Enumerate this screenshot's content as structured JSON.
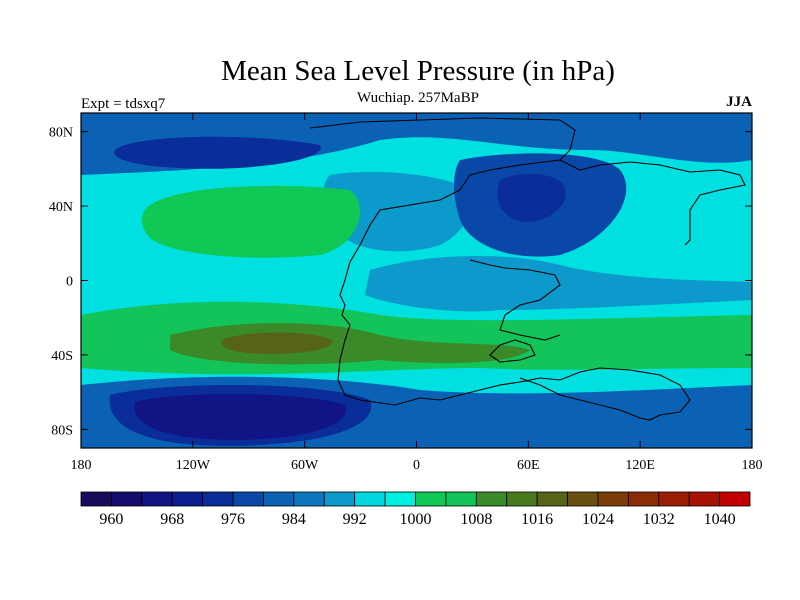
{
  "chart_data": {
    "type": "heatmap",
    "title": "Mean Sea Level Pressure (in hPa)",
    "subtitle": "Wuchiap. 257MaBP",
    "left_label": "Expt = tdsxq7",
    "right_label": "JJA",
    "xlabel": "",
    "ylabel": "",
    "x_range": [
      -180,
      180
    ],
    "y_range": [
      -90,
      90
    ],
    "x_ticks": [
      {
        "value": -180,
        "label": "180"
      },
      {
        "value": -120,
        "label": "120W"
      },
      {
        "value": -60,
        "label": "60W"
      },
      {
        "value": 0,
        "label": "0"
      },
      {
        "value": 60,
        "label": "60E"
      },
      {
        "value": 120,
        "label": "120E"
      },
      {
        "value": 180,
        "label": "180"
      }
    ],
    "y_ticks": [
      {
        "value": 80,
        "label": "80N"
      },
      {
        "value": 40,
        "label": "40N"
      },
      {
        "value": 0,
        "label": "0"
      },
      {
        "value": -40,
        "label": "40S"
      },
      {
        "value": -80,
        "label": "80S"
      }
    ],
    "colorbar": {
      "levels": [
        956,
        960,
        964,
        968,
        972,
        976,
        980,
        984,
        988,
        992,
        996,
        1000,
        1004,
        1008,
        1012,
        1016,
        1020,
        1024,
        1028,
        1032,
        1036,
        1040,
        1044
      ],
      "tick_labels": [
        "960",
        "968",
        "976",
        "984",
        "992",
        "1000",
        "1008",
        "1016",
        "1024",
        "1032",
        "1040"
      ],
      "colors": [
        "#1a0a5a",
        "#150d6e",
        "#101485",
        "#0b1e90",
        "#0a2d99",
        "#0a48a8",
        "#0b62b5",
        "#0c77bf",
        "#0d99cc",
        "#00d8e0",
        "#00f0e0",
        "#10c855",
        "#12c45a",
        "#3a8a2a",
        "#4a7a1e",
        "#556418",
        "#6a5010",
        "#7a3d08",
        "#8a2c06",
        "#9a1e04",
        "#a81202",
        "#c20000"
      ]
    },
    "fields": [
      {
        "value": 1001,
        "color": "#00e0e0",
        "shape": "ocean-background"
      },
      {
        "value": 986,
        "color": "#0b62b5",
        "shape": "northern-low-belt"
      },
      {
        "value": 974,
        "color": "#0a2d99",
        "shape": "arctic-low-core"
      },
      {
        "value": 994,
        "color": "#0c99cc",
        "shape": "north-atlantic-trough"
      },
      {
        "value": 1006,
        "color": "#10c855",
        "shape": "north-pacific-high"
      },
      {
        "value": 992,
        "color": "#0d99cc",
        "shape": "tropical-band"
      },
      {
        "value": 1010,
        "color": "#12c45a",
        "shape": "southern-high-belt"
      },
      {
        "value": 1014,
        "color": "#3a8a2a",
        "shape": "subtropical-ridge"
      },
      {
        "value": 1018,
        "color": "#556418",
        "shape": "ridge-core"
      },
      {
        "value": 988,
        "color": "#0b62b5",
        "shape": "southern-ocean-trough"
      },
      {
        "value": 972,
        "color": "#0a2d99",
        "shape": "southern-low"
      },
      {
        "value": 962,
        "color": "#101485",
        "shape": "southern-low-core"
      },
      {
        "value": 984,
        "color": "#0a48a8",
        "shape": "continental-low"
      },
      {
        "value": 976,
        "color": "#0a2d99",
        "shape": "continental-low-core"
      }
    ]
  }
}
